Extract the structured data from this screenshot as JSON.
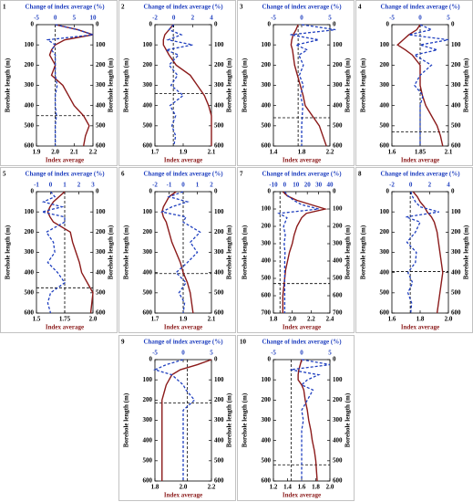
{
  "chart_data": [
    {
      "type": "line",
      "label": "1",
      "x2label": "Change of index average (%)",
      "xlabel": "Index average",
      "ylabel": "Borehole length (m)",
      "xlim": [
        1.9,
        2.2
      ],
      "xticks": [
        1.9,
        {
          "value": 2,
          "label": "2.0"
        },
        2.1,
        2.2
      ],
      "x2lim": [
        -5,
        10
      ],
      "x2ticks": [
        -5,
        0,
        5,
        10
      ],
      "ylim": [
        600,
        0
      ],
      "yticks": [
        0,
        100,
        200,
        300,
        400,
        500,
        600
      ],
      "hline": 450,
      "vline": 2,
      "depth": [
        0,
        25,
        50,
        75,
        100,
        125,
        150,
        200,
        250,
        300,
        350,
        400,
        450,
        500,
        550,
        600
      ],
      "series": [
        {
          "color": "#8b1a1a",
          "values": [
            2.0,
            2.12,
            2.2,
            2.05,
            2.0,
            1.98,
            1.97,
            2.0,
            1.98,
            2.04,
            2.07,
            2.1,
            2.15,
            2.18,
            2.16,
            2.15
          ]
        },
        {
          "color": "#1f3fbf",
          "axis": "x2",
          "dashed": true,
          "values": [
            0,
            6,
            10,
            -2,
            0,
            -1,
            0,
            0,
            0,
            0.5,
            0,
            0,
            0.3,
            0,
            0,
            0
          ]
        }
      ]
    },
    {
      "type": "line",
      "label": "2",
      "x2label": "Change of index average (%)",
      "xlabel": "Index average",
      "ylabel": "Borehole length (m)",
      "xlim": [
        1.7,
        2.1
      ],
      "xticks": [
        1.7,
        1.9,
        2.1
      ],
      "x2lim": [
        -2,
        4
      ],
      "x2ticks": [
        -2,
        0,
        2,
        4
      ],
      "ylim": [
        600,
        0
      ],
      "yticks": [
        0,
        100,
        200,
        300,
        400,
        500,
        600
      ],
      "hline": 340,
      "vline": 1.83,
      "depth": [
        0,
        25,
        50,
        75,
        100,
        125,
        150,
        200,
        250,
        300,
        350,
        400,
        450,
        500,
        550,
        600
      ],
      "series": [
        {
          "color": "#8b1a1a",
          "values": [
            1.83,
            1.8,
            1.77,
            1.76,
            1.76,
            1.78,
            1.8,
            1.85,
            1.95,
            2.0,
            2.05,
            2.08,
            2.1,
            2.1,
            2.1,
            2.1
          ]
        },
        {
          "color": "#1f3fbf",
          "axis": "x2",
          "dashed": true,
          "values": [
            0,
            -0.5,
            0.8,
            -0.6,
            2,
            -0.8,
            0.5,
            -0.5,
            0.4,
            -0.3,
            1,
            -0.4,
            0.2,
            -0.2,
            0.2,
            0
          ]
        }
      ]
    },
    {
      "type": "line",
      "label": "3",
      "x2label": "Change of index average (%)",
      "xlabel": "Index average",
      "ylabel": "Borehole length (m)",
      "xlim": [
        1.4,
        2.2
      ],
      "xticks": [
        1.4,
        1.8,
        2.2
      ],
      "x2lim": [
        -5,
        5
      ],
      "x2ticks": [
        -5,
        0,
        5
      ],
      "ylim": [
        600,
        0
      ],
      "yticks": [
        0,
        100,
        200,
        300,
        400,
        500,
        600
      ],
      "hline": 460,
      "vline": 1.75,
      "depth": [
        0,
        25,
        50,
        75,
        100,
        125,
        150,
        200,
        250,
        300,
        350,
        400,
        450,
        500,
        550,
        600
      ],
      "series": [
        {
          "color": "#8b1a1a",
          "values": [
            1.75,
            1.72,
            1.68,
            1.66,
            1.65,
            1.67,
            1.68,
            1.7,
            1.74,
            1.78,
            1.82,
            1.85,
            1.95,
            2.05,
            2.1,
            2.15
          ]
        },
        {
          "color": "#1f3fbf",
          "axis": "x2",
          "dashed": true,
          "values": [
            0,
            6,
            -2,
            3,
            -1,
            1,
            -0.5,
            0.3,
            -0.4,
            0.3,
            -0.2,
            0.2,
            0.1,
            0,
            0,
            0
          ]
        }
      ]
    },
    {
      "type": "line",
      "label": "4",
      "x2label": "Change of index average (%)",
      "xlabel": "Index average",
      "ylabel": "Borehole length (m)",
      "xlim": [
        1.6,
        2.1
      ],
      "xticks": [
        1.6,
        1.85,
        2.1
      ],
      "x2lim": [
        -5,
        5
      ],
      "x2ticks": [
        -5,
        0,
        5
      ],
      "ylim": [
        600,
        0
      ],
      "yticks": [
        0,
        100,
        200,
        300,
        400,
        500,
        600
      ],
      "hline": 530,
      "vline": 1.85,
      "depth": [
        0,
        25,
        50,
        75,
        100,
        125,
        150,
        200,
        250,
        300,
        350,
        400,
        450,
        500,
        550,
        600
      ],
      "series": [
        {
          "color": "#8b1a1a",
          "values": [
            1.85,
            1.82,
            1.75,
            1.7,
            1.65,
            1.72,
            1.78,
            1.85,
            1.85,
            1.85,
            1.87,
            1.9,
            1.95,
            2.0,
            2.03,
            2.05
          ]
        },
        {
          "color": "#1f3fbf",
          "axis": "x2",
          "dashed": true,
          "values": [
            0,
            2,
            -2,
            5,
            0,
            3,
            -1,
            2,
            0,
            -1,
            0.5,
            0,
            0,
            0,
            0,
            0
          ]
        }
      ]
    },
    {
      "type": "line",
      "label": "5",
      "x2label": "Change of index average (%)",
      "xlabel": "Index average",
      "ylabel": "Borehole length (m)",
      "xlim": [
        1.5,
        2.0
      ],
      "xticks": [
        1.5,
        1.75,
        {
          "value": 2,
          "label": "2.0"
        }
      ],
      "x2lim": [
        -1,
        3
      ],
      "x2ticks": [
        -1,
        0,
        1,
        2,
        3
      ],
      "ylim": [
        600,
        0
      ],
      "yticks": [
        0,
        100,
        200,
        300,
        400,
        500,
        600
      ],
      "hline": 475,
      "vline": 1.75,
      "depth": [
        0,
        25,
        50,
        75,
        100,
        125,
        150,
        200,
        250,
        300,
        350,
        400,
        450,
        500,
        550,
        600
      ],
      "series": [
        {
          "color": "#8b1a1a",
          "values": [
            1.75,
            1.7,
            1.65,
            1.62,
            1.6,
            1.62,
            1.65,
            1.8,
            1.82,
            1.85,
            1.88,
            1.9,
            1.95,
            2.0,
            1.99,
            1.98
          ]
        },
        {
          "color": "#1f3fbf",
          "axis": "x2",
          "dashed": true,
          "values": [
            0,
            0.3,
            -0.5,
            0.8,
            -0.6,
            1,
            1,
            -0.3,
            0.2,
            0.3,
            -0.2,
            0.5,
            1,
            0,
            -0.2,
            0
          ]
        }
      ]
    },
    {
      "type": "line",
      "label": "6",
      "x2label": "Change of index average (%)",
      "xlabel": "Index average",
      "ylabel": "Borehole length (m)",
      "xlim": [
        1.7,
        2.1
      ],
      "xticks": [
        1.7,
        1.9,
        2.1
      ],
      "x2lim": [
        -2,
        2
      ],
      "x2ticks": [
        -2,
        -1,
        0,
        1,
        2
      ],
      "ylim": [
        600,
        0
      ],
      "yticks": [
        0,
        100,
        200,
        300,
        400,
        500,
        600
      ],
      "hline": 405,
      "vline": 1.9,
      "depth": [
        0,
        25,
        50,
        75,
        100,
        125,
        150,
        200,
        250,
        300,
        350,
        400,
        450,
        500,
        550,
        600
      ],
      "series": [
        {
          "color": "#8b1a1a",
          "values": [
            1.85,
            1.8,
            1.78,
            1.76,
            1.75,
            1.76,
            1.78,
            1.8,
            1.82,
            1.85,
            1.88,
            1.9,
            1.93,
            1.95,
            1.96,
            1.97
          ]
        },
        {
          "color": "#1f3fbf",
          "axis": "x2",
          "dashed": true,
          "values": [
            0,
            -1,
            0.3,
            -0.8,
            -1.5,
            0.2,
            0,
            1.2,
            0.5,
            1,
            0.3,
            -0.5,
            0.2,
            -0.3,
            0.1,
            0
          ]
        }
      ]
    },
    {
      "type": "line",
      "label": "7",
      "x2label": "Change of index average (%)",
      "xlabel": "Index average",
      "ylabel": "Borehole length (m)",
      "xlim": [
        1.8,
        2.4
      ],
      "xticks": [
        1.8,
        {
          "value": 2,
          "label": "2.0"
        },
        2.2,
        2.4
      ],
      "x2lim": [
        -10,
        40
      ],
      "x2ticks": [
        -10,
        0,
        10,
        20,
        30,
        40
      ],
      "ylim": [
        700,
        0
      ],
      "yticks": [
        0,
        100,
        200,
        300,
        400,
        500,
        600,
        700
      ],
      "hline": 530,
      "vline": 1.87,
      "depth": [
        0,
        25,
        50,
        75,
        100,
        125,
        150,
        200,
        250,
        300,
        350,
        400,
        450,
        500,
        550,
        600,
        650,
        700
      ],
      "series": [
        {
          "color": "#8b1a1a",
          "values": [
            1.9,
            1.95,
            2.05,
            2.2,
            2.35,
            2.15,
            2.1,
            2.05,
            2.02,
            2.0,
            1.97,
            1.95,
            1.93,
            1.92,
            1.91,
            1.9,
            1.9,
            1.9
          ]
        },
        {
          "color": "#1f3fbf",
          "axis": "x2",
          "dashed": true,
          "values": [
            0,
            3,
            8,
            15,
            30,
            -5,
            2,
            -1,
            0.5,
            -0.5,
            0.3,
            0,
            0,
            0,
            0,
            0,
            0,
            0
          ]
        }
      ]
    },
    {
      "type": "line",
      "label": "8",
      "x2label": "Change of index average (%)",
      "xlabel": "Index average",
      "ylabel": "Borehole length (m)",
      "xlim": [
        1.6,
        2.0
      ],
      "xticks": [
        1.6,
        1.8,
        {
          "value": 2,
          "label": "2.0"
        }
      ],
      "x2lim": [
        -2,
        4
      ],
      "x2ticks": [
        -2,
        0,
        2,
        4
      ],
      "ylim": [
        600,
        0
      ],
      "yticks": [
        0,
        100,
        200,
        300,
        400,
        500,
        600
      ],
      "hline": 395,
      "vline": 1.73,
      "depth": [
        0,
        25,
        50,
        75,
        100,
        125,
        150,
        200,
        250,
        300,
        350,
        400,
        450,
        500,
        550,
        600
      ],
      "series": [
        {
          "color": "#8b1a1a",
          "values": [
            1.75,
            1.78,
            1.8,
            1.83,
            1.85,
            1.88,
            1.9,
            1.92,
            1.93,
            1.94,
            1.95,
            1.96,
            1.95,
            1.94,
            1.93,
            1.92
          ]
        },
        {
          "color": "#1f3fbf",
          "axis": "x2",
          "dashed": true,
          "values": [
            0,
            0.2,
            0.5,
            1,
            3,
            -0.5,
            1,
            0.5,
            -0.4,
            0.6,
            0.5,
            -0.3,
            0.2,
            -0.3,
            0.1,
            0
          ]
        }
      ]
    },
    {
      "type": "line",
      "label": "9",
      "x2label": "Change of index average (%)",
      "xlabel": "Index average",
      "ylabel": "Borehole length (m)",
      "xlim": [
        1.8,
        2.2
      ],
      "xticks": [
        1.8,
        {
          "value": 2,
          "label": "2.0"
        },
        2.2
      ],
      "x2lim": [
        -5,
        5
      ],
      "x2ticks": [
        -5,
        0,
        5
      ],
      "ylim": [
        600,
        0
      ],
      "yticks": [
        0,
        100,
        200,
        300,
        400,
        500,
        600
      ],
      "hline": 215,
      "vline": 2.03,
      "depth": [
        0,
        25,
        50,
        75,
        100,
        125,
        150,
        200,
        250,
        300,
        350,
        400,
        450,
        500,
        550,
        600
      ],
      "series": [
        {
          "color": "#8b1a1a",
          "values": [
            2.2,
            2.1,
            1.98,
            1.92,
            1.9,
            1.88,
            1.87,
            1.85,
            1.85,
            1.85,
            1.85,
            1.85,
            1.85,
            1.85,
            1.85,
            1.85
          ]
        },
        {
          "color": "#1f3fbf",
          "axis": "x2",
          "dashed": true,
          "values": [
            0,
            -3,
            -5,
            -2,
            -1,
            0,
            0.5,
            2,
            0,
            0,
            0,
            0,
            0,
            0,
            0,
            0
          ]
        }
      ]
    },
    {
      "type": "line",
      "label": "10",
      "x2label": "Change of index average (%)",
      "xlabel": "Index average",
      "ylabel": "Borehole length (m)",
      "xlim": [
        1.2,
        2.0
      ],
      "xticks": [
        1.2,
        1.4,
        1.6,
        1.8,
        {
          "value": 2,
          "label": "2.0"
        }
      ],
      "x2lim": [
        -5,
        5
      ],
      "x2ticks": [
        -5,
        0,
        5
      ],
      "ylim": [
        600,
        0
      ],
      "yticks": [
        0,
        100,
        200,
        300,
        400,
        500,
        600
      ],
      "hline": 520,
      "vline": 1.45,
      "depth": [
        0,
        25,
        50,
        75,
        100,
        125,
        150,
        200,
        250,
        300,
        350,
        400,
        450,
        500,
        550,
        600
      ],
      "series": [
        {
          "color": "#8b1a1a",
          "values": [
            1.6,
            1.58,
            1.56,
            1.55,
            1.55,
            1.6,
            1.63,
            1.65,
            1.68,
            1.7,
            1.73,
            1.75,
            1.78,
            1.8,
            1.81,
            1.82
          ]
        },
        {
          "color": "#1f3fbf",
          "axis": "x2",
          "dashed": true,
          "values": [
            0,
            5,
            -2,
            3,
            1,
            0,
            2,
            1,
            0,
            0.3,
            0,
            0,
            0,
            0,
            0,
            0
          ]
        }
      ]
    }
  ]
}
